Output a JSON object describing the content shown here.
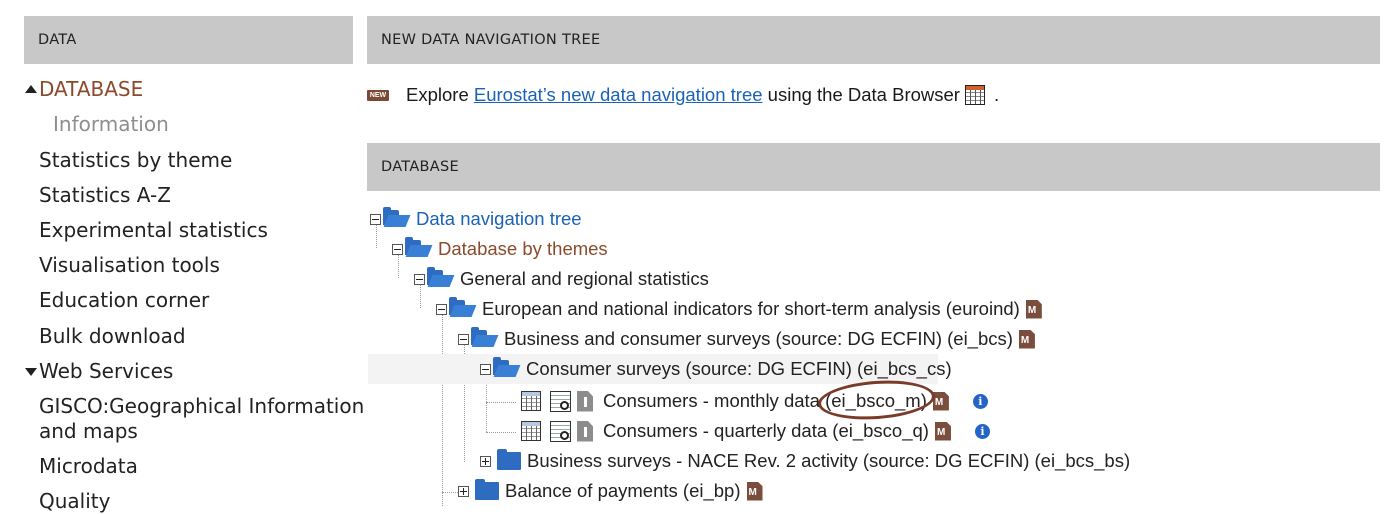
{
  "left_panel": {
    "header": "DATA",
    "items": [
      {
        "label": "DATABASE"
      },
      {
        "label": "Information"
      },
      {
        "label": "Statistics by theme"
      },
      {
        "label": "Statistics A-Z"
      },
      {
        "label": "Experimental statistics"
      },
      {
        "label": "Visualisation tools"
      },
      {
        "label": "Education corner"
      },
      {
        "label": "Bulk download"
      },
      {
        "label": "Web Services"
      },
      {
        "label": "GISCO:Geographical Information"
      },
      {
        "label": "and maps"
      },
      {
        "label": "Microdata"
      },
      {
        "label": "Quality"
      }
    ]
  },
  "new_nav": {
    "header": "NEW DATA NAVIGATION TREE",
    "badge": "NEW",
    "text_before": "Explore ",
    "link": "Eurostat’s new data navigation tree",
    "text_after": " using the Data Browser",
    "end": "."
  },
  "database": {
    "header": "DATABASE",
    "tree": [
      {
        "label": "Data navigation tree"
      },
      {
        "label": "Database by themes"
      },
      {
        "label": "General and regional statistics"
      },
      {
        "label": "European and national indicators for short-term analysis (euroind)"
      },
      {
        "label": "Business and consumer surveys (source: DG ECFIN) (ei_bcs)"
      },
      {
        "label": "Consumer surveys (source: DG ECFIN) (ei_bcs_cs)"
      },
      {
        "label": "Consumers - monthly data (ei_bsco_m)"
      },
      {
        "label": "Consumers - quarterly data (ei_bsco_q)"
      },
      {
        "label": "Business surveys - NACE Rev. 2 activity (source: DG ECFIN) (ei_bcs_bs)"
      },
      {
        "label": "Balance of payments (ei_bp)"
      }
    ],
    "info_glyph": "i"
  }
}
